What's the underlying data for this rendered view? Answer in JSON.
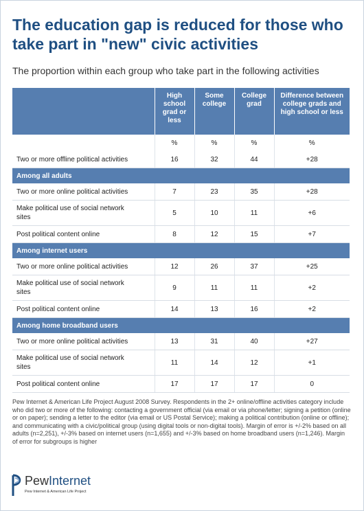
{
  "title": "The education gap is reduced for those who take part in \"new\" civic activities",
  "subtitle": "The proportion within each group who take part in the following activities",
  "columns": [
    "",
    "High school grad or less",
    "Some college",
    "College grad",
    "Difference between college grads and high school or less"
  ],
  "units": [
    "",
    "%",
    "%",
    "%",
    "%"
  ],
  "chart_data": {
    "type": "table",
    "title": "The education gap is reduced for those who take part in \"new\" civic activities",
    "subtitle": "The proportion within each group who take part in the following activities",
    "columns": [
      "High school grad or less",
      "Some college",
      "College grad",
      "Difference between college grads and high school or less"
    ],
    "rows": [
      {
        "label": "Two or more offline political activities",
        "values": [
          "16",
          "32",
          "44",
          "+28"
        ],
        "lines": 1
      },
      {
        "section": "Among all adults"
      },
      {
        "label": "Two or more online political activities",
        "values": [
          "7",
          "23",
          "35",
          "+28"
        ],
        "lines": 1
      },
      {
        "label": "Make political use of social network sites",
        "values": [
          "5",
          "10",
          "11",
          "+6"
        ],
        "lines": 2
      },
      {
        "label": "Post political content online",
        "values": [
          "8",
          "12",
          "15",
          "+7"
        ],
        "lines": 1
      },
      {
        "section": "Among internet users"
      },
      {
        "label": "Two or more online political activities",
        "values": [
          "12",
          "26",
          "37",
          "+25"
        ],
        "lines": 1
      },
      {
        "label": "Make political use of social network sites",
        "values": [
          "9",
          "11",
          "11",
          "+2"
        ],
        "lines": 2
      },
      {
        "label": "Post political content online",
        "values": [
          "14",
          "13",
          "16",
          "+2"
        ],
        "lines": 1
      },
      {
        "section": "Among home broadband users"
      },
      {
        "label": "Two or more online political activities",
        "values": [
          "13",
          "31",
          "40",
          "+27"
        ],
        "lines": 1
      },
      {
        "label": "Make political use of social network sites",
        "values": [
          "11",
          "14",
          "12",
          "+1"
        ],
        "lines": 2
      },
      {
        "label": "Post political content online",
        "values": [
          "17",
          "17",
          "17",
          "0"
        ],
        "lines": 1
      }
    ]
  },
  "footnote": "Pew Internet & American Life Project August 2008 Survey. Respondents in the 2+ online/offline activities category include who did two or more of the following: contacting a government official (via email or via phone/letter; signing a petition (online or on paper); sending a letter to the editor (via email or US Postal Service); making a political contribution (online or offline); and communicating with a civic/political group (using digital tools or non-digital tools). Margin of error is +/-2% based on all adults (n=2,251), +/-3% based on internet users (n=1,655) and +/-3% based on home broadband users (n=1,246). Margin of error for subgroups is higher",
  "logo": {
    "name": "PewInternet",
    "word_a": "Pew",
    "word_b": "Internet",
    "tagline": "Pew Internet & American Life Project",
    "color": "#1f4f82"
  },
  "colors": {
    "header": "#567eb0",
    "title": "#1f4f82"
  }
}
